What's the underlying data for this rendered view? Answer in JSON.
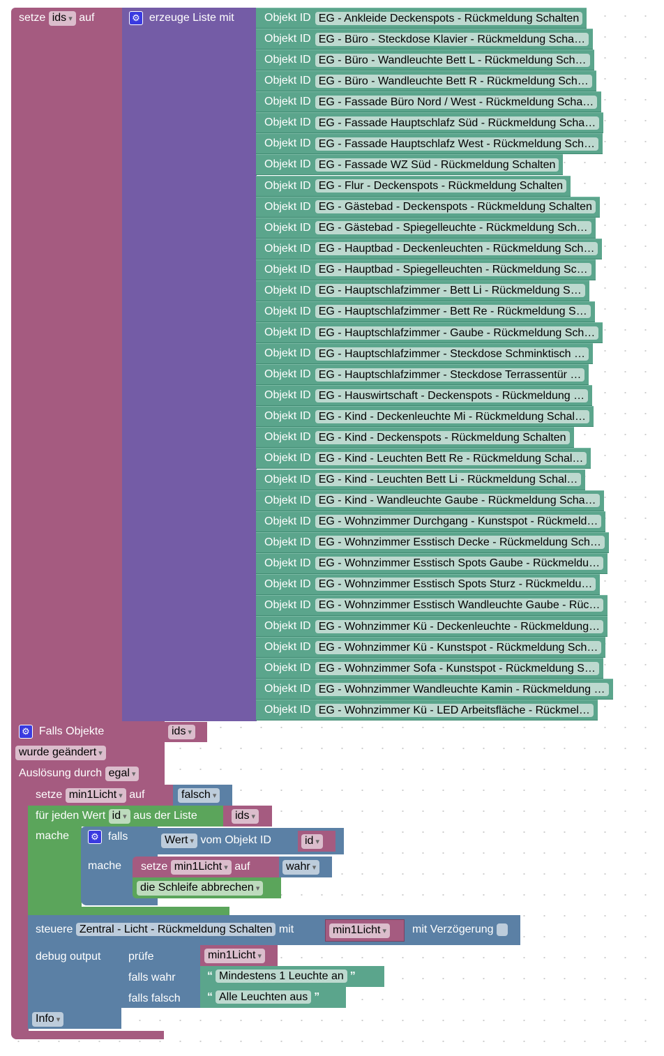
{
  "set_block": {
    "setze": "setze",
    "var": "ids",
    "auf": "auf"
  },
  "list_block": {
    "label": "erzeuge Liste mit",
    "icon": "gear-icon"
  },
  "object_label": "Objekt ID",
  "objects": [
    "EG - Ankleide Deckenspots - Rückmeldung Schalten",
    "EG - Büro - Steckdose Klavier - Rückmeldung Scha…",
    "EG - Büro - Wandleuchte Bett L - Rückmeldung Sch…",
    "EG - Büro - Wandleuchte Bett R - Rückmeldung Sch…",
    "EG - Fassade Büro Nord / West - Rückmeldung Scha…",
    "EG - Fassade Hauptschlafz Süd - Rückmeldung Scha…",
    "EG - Fassade Hauptschlafz West - Rückmeldung Sch…",
    "EG - Fassade WZ Süd - Rückmeldung Schalten",
    "EG - Flur - Deckenspots - Rückmeldung Schalten",
    "EG - Gästebad - Deckenspots - Rückmeldung Schalten",
    "EG - Gästebad - Spiegelleuchte - Rückmeldung Sch…",
    "EG - Hauptbad - Deckenleuchten - Rückmeldung Sch…",
    "EG - Hauptbad - Spiegelleuchten - Rückmeldung Sc…",
    "EG - Hauptschlafzimmer - Bett Li - Rückmeldung S…",
    "EG - Hauptschlafzimmer - Bett Re - Rückmeldung S…",
    "EG - Hauptschlafzimmer - Gaube - Rückmeldung Sch…",
    "EG - Hauptschlafzimmer - Steckdose Schminktisch …",
    "EG - Hauptschlafzimmer - Steckdose Terrassentür …",
    "EG - Hauswirtschaft - Deckenspots - Rückmeldung …",
    "EG - Kind - Deckenleuchte Mi - Rückmeldung Schal…",
    "EG - Kind - Deckenspots - Rückmeldung Schalten",
    "EG - Kind - Leuchten Bett Re - Rückmeldung Schal…",
    "EG - Kind - Leuchten Bett Li - Rückmeldung Schal…",
    "EG - Kind - Wandleuchte Gaube - Rückmeldung Scha…",
    "EG - Wohnzimmer Durchgang - Kunstspot - Rückmeld…",
    "EG - Wohnzimmer Esstisch Decke - Rückmeldung Sch…",
    "EG - Wohnzimmer Esstisch Spots Gaube - Rückmeldu…",
    "EG - Wohnzimmer Esstisch Spots Sturz - Rückmeldu…",
    "EG - Wohnzimmer Esstisch Wandleuchte Gaube - Rüc…",
    "EG - Wohnzimmer Kü - Deckenleuchte - Rückmeldung…",
    "EG - Wohnzimmer Kü - Kunstspot - Rückmeldung Sch…",
    "EG - Wohnzimmer Sofa - Kunstspot - Rückmeldung S…",
    "EG - Wohnzimmer Wandleuchte Kamin - Rückmeldung …",
    "EG - Wohnzimmer Kü - LED Arbeitsfläche - Rückmel…"
  ],
  "trigger": {
    "title": "Falls Objekte",
    "var": "ids",
    "event": "wurde geändert",
    "by_label": "Auslösung durch",
    "by": "egal"
  },
  "set_false": {
    "setze": "setze",
    "var": "min1Licht",
    "auf": "auf",
    "value": "falsch"
  },
  "foreach": {
    "label": "für jeden Wert",
    "var": "id",
    "from": "aus der Liste",
    "list": "ids",
    "do": "mache"
  },
  "if_block": {
    "falls": "falls",
    "do": "mache",
    "prop": "Wert",
    "from": "vom Objekt ID",
    "id": "id"
  },
  "set_true": {
    "setze": "setze",
    "var": "min1Licht",
    "auf": "auf",
    "value": "wahr"
  },
  "break": {
    "label": "die Schleife abbrechen"
  },
  "control": {
    "label": "steuere",
    "object": "Zentral - Licht - Rückmeldung Schalten",
    "with": "mit",
    "value": "min1Licht",
    "delay": "mit Verzögerung"
  },
  "debug": {
    "label": "debug output",
    "level": "Info"
  },
  "ternary": {
    "check": "prüfe",
    "var": "min1Licht",
    "if_true": "falls wahr",
    "if_false": "falls falsch",
    "true_text": "Mindestens 1 Leuchte an",
    "false_text": "Alle Leuchten aus"
  }
}
